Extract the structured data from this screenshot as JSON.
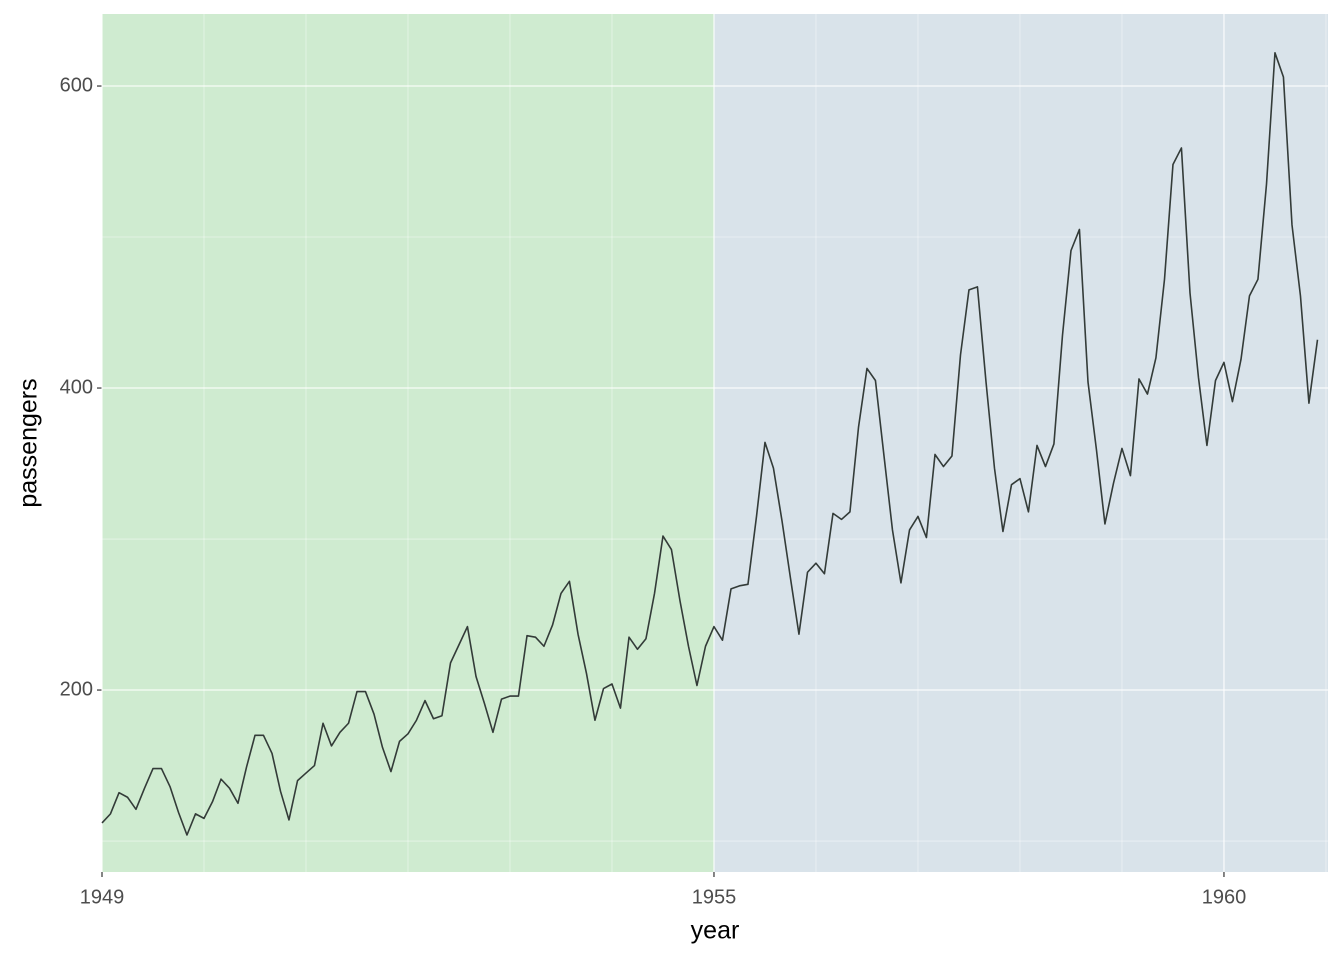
{
  "chart_data": {
    "type": "line",
    "xlabel": "year",
    "ylabel": "passengers",
    "xlim": [
      1949,
      1961.02
    ],
    "ylim": [
      79.5,
      647.7
    ],
    "xticks": [
      1949,
      1955,
      1960
    ],
    "xminor": [
      1950,
      1951,
      1952,
      1953,
      1954,
      1956,
      1957,
      1958,
      1959,
      1961
    ],
    "yticks": [
      200,
      400,
      600
    ],
    "yminor": [
      100,
      300,
      500
    ],
    "grid": true,
    "regions": [
      {
        "from": 1949,
        "to": 1955,
        "color": "#cfebd0"
      },
      {
        "from": 1955,
        "to": 1961.02,
        "color": "#d9e3ea"
      }
    ],
    "series": [
      {
        "color": "#333b38",
        "x": [
          1949,
          1949.083,
          1949.167,
          1949.25,
          1949.333,
          1949.417,
          1949.5,
          1949.583,
          1949.667,
          1949.75,
          1949.833,
          1949.917,
          1950,
          1950.083,
          1950.167,
          1950.25,
          1950.333,
          1950.417,
          1950.5,
          1950.583,
          1950.667,
          1950.75,
          1950.833,
          1950.917,
          1951,
          1951.083,
          1951.167,
          1951.25,
          1951.333,
          1951.417,
          1951.5,
          1951.583,
          1951.667,
          1951.75,
          1951.833,
          1951.917,
          1952,
          1952.083,
          1952.167,
          1952.25,
          1952.333,
          1952.417,
          1952.5,
          1952.583,
          1952.667,
          1952.75,
          1952.833,
          1952.917,
          1953,
          1953.083,
          1953.167,
          1953.25,
          1953.333,
          1953.417,
          1953.5,
          1953.583,
          1953.667,
          1953.75,
          1953.833,
          1953.917,
          1954,
          1954.083,
          1954.167,
          1954.25,
          1954.333,
          1954.417,
          1954.5,
          1954.583,
          1954.667,
          1954.75,
          1954.833,
          1954.917,
          1955,
          1955.083,
          1955.167,
          1955.25,
          1955.333,
          1955.417,
          1955.5,
          1955.583,
          1955.667,
          1955.75,
          1955.833,
          1955.917,
          1956,
          1956.083,
          1956.167,
          1956.25,
          1956.333,
          1956.417,
          1956.5,
          1956.583,
          1956.667,
          1956.75,
          1956.833,
          1956.917,
          1957,
          1957.083,
          1957.167,
          1957.25,
          1957.333,
          1957.417,
          1957.5,
          1957.583,
          1957.667,
          1957.75,
          1957.833,
          1957.917,
          1958,
          1958.083,
          1958.167,
          1958.25,
          1958.333,
          1958.417,
          1958.5,
          1958.583,
          1958.667,
          1958.75,
          1958.833,
          1958.917,
          1959,
          1959.083,
          1959.167,
          1959.25,
          1959.333,
          1959.417,
          1959.5,
          1959.583,
          1959.667,
          1959.75,
          1959.833,
          1959.917,
          1960,
          1960.083,
          1960.167,
          1960.25,
          1960.333,
          1960.417,
          1960.5,
          1960.583,
          1960.667,
          1960.75,
          1960.833,
          1960.917
        ],
        "values": [
          112,
          118,
          132,
          129,
          121,
          135,
          148,
          148,
          136,
          119,
          104,
          118,
          115,
          126,
          141,
          135,
          125,
          149,
          170,
          170,
          158,
          133,
          114,
          140,
          145,
          150,
          178,
          163,
          172,
          178,
          199,
          199,
          184,
          162,
          146,
          166,
          171,
          180,
          193,
          181,
          183,
          218,
          230,
          242,
          209,
          191,
          172,
          194,
          196,
          196,
          236,
          235,
          229,
          243,
          264,
          272,
          237,
          211,
          180,
          201,
          204,
          188,
          235,
          227,
          234,
          264,
          302,
          293,
          259,
          229,
          203,
          229,
          242,
          233,
          267,
          269,
          270,
          315,
          364,
          347,
          312,
          274,
          237,
          278,
          284,
          277,
          317,
          313,
          318,
          374,
          413,
          405,
          355,
          306,
          271,
          306,
          315,
          301,
          356,
          348,
          355,
          422,
          465,
          467,
          404,
          347,
          305,
          336,
          340,
          318,
          362,
          348,
          363,
          435,
          491,
          505,
          404,
          359,
          310,
          337,
          360,
          342,
          406,
          396,
          420,
          472,
          548,
          559,
          463,
          407,
          362,
          405,
          417,
          391,
          419,
          461,
          472,
          535,
          622,
          606,
          508,
          461,
          390,
          432
        ]
      }
    ]
  }
}
